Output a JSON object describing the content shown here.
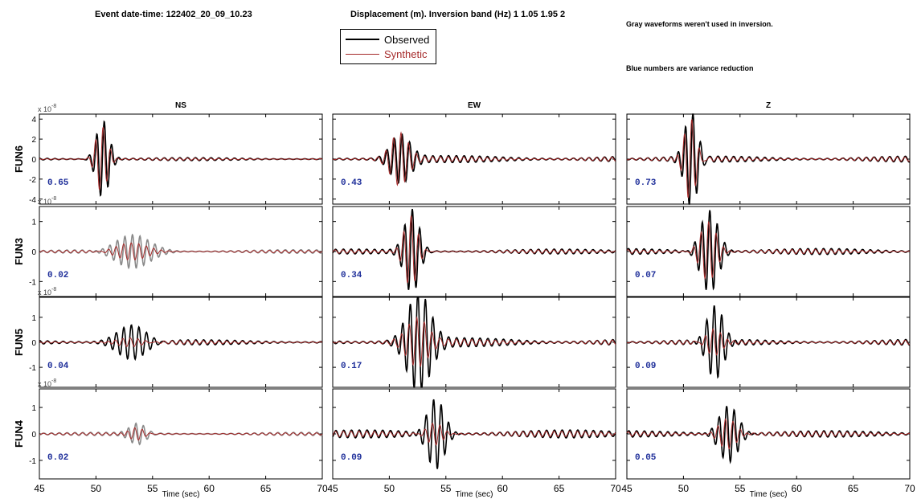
{
  "header": {
    "event": "Event date-time: 122402_20_09_10.23",
    "displacement": "Displacement (m).  Inversion band (Hz)  1 1.05 1.95 2",
    "gray_note": "Gray waveforms weren't used in inversion.",
    "blue_note": "Blue numbers are variance reduction"
  },
  "legend": {
    "observed": "Observed",
    "synthetic": "Synthetic"
  },
  "colors": {
    "observed": "#000000",
    "synthetic": "#a52a2a",
    "unused": "#8a8a8a",
    "variance": "#1f2f9a"
  },
  "chart_data": {
    "type": "line",
    "columns": [
      "NS",
      "EW",
      "Z"
    ],
    "stations": [
      "FUN6",
      "FUN3",
      "FUN5",
      "FUN4"
    ],
    "xlabel": "Time (sec)",
    "xlim": [
      45,
      70
    ],
    "xticks": [
      45,
      50,
      55,
      60,
      65,
      70
    ],
    "x_tick_labels": [
      [
        "45",
        "50",
        "55",
        "60",
        "65",
        "70"
      ],
      [
        "45",
        "50",
        "55",
        "60",
        "65",
        "70"
      ],
      [
        "45",
        "50",
        "55",
        "60",
        "65",
        "70"
      ]
    ],
    "scale_label": "x 10",
    "scale_exponent": "-8",
    "rows": [
      {
        "station": "FUN6",
        "ylim": [
          -4.5,
          4.5
        ],
        "yticks": [
          -4,
          -2,
          0,
          2,
          4
        ],
        "variance_reduction": [
          "0.65",
          "0.43",
          "0.73"
        ],
        "used": [
          true,
          true,
          true
        ],
        "peaks": [
          [
            3.9,
            2.3,
            4.8
          ],
          [
            3.3,
            2.5,
            4.2
          ]
        ],
        "centers": [
          50.6,
          51.0,
          50.7
        ],
        "widths": [
          0.8,
          1.2,
          0.8
        ],
        "noise": [
          0.15,
          0.35,
          0.3
        ]
      },
      {
        "station": "FUN3",
        "ylim": [
          -1.5,
          1.5
        ],
        "yticks": [
          -1,
          0,
          1
        ],
        "variance_reduction": [
          "0.02",
          "0.34",
          "0.07"
        ],
        "used": [
          false,
          true,
          true
        ],
        "peaks": [
          [
            0.6,
            1.4,
            1.4
          ],
          [
            0.3,
            1.2,
            1.0
          ]
        ],
        "centers": [
          53.2,
          52.0,
          52.3
        ],
        "widths": [
          2.2,
          0.9,
          1.1
        ],
        "noise": [
          0.06,
          0.08,
          0.1
        ]
      },
      {
        "station": "FUN5",
        "ylim": [
          -1.8,
          1.8
        ],
        "yticks": [
          -1,
          0,
          1
        ],
        "variance_reduction": [
          "0.04",
          "0.17",
          "0.09"
        ],
        "used": [
          true,
          true,
          true
        ],
        "peaks": [
          [
            0.7,
            1.9,
            1.6
          ],
          [
            0.2,
            0.9,
            0.6
          ]
        ],
        "centers": [
          53.2,
          52.6,
          52.8
        ],
        "widths": [
          1.8,
          1.4,
          1.1
        ],
        "noise": [
          0.1,
          0.18,
          0.12
        ]
      },
      {
        "station": "FUN4",
        "ylim": [
          -1.7,
          1.7
        ],
        "yticks": [
          -1,
          0,
          1
        ],
        "variance_reduction": [
          "0.02",
          "0.09",
          "0.05"
        ],
        "used": [
          false,
          true,
          true
        ],
        "peaks": [
          [
            0.4,
            1.4,
            1.1
          ],
          [
            0.25,
            0.45,
            0.6
          ]
        ],
        "centers": [
          53.7,
          54.1,
          54.0
        ],
        "widths": [
          1.0,
          1.1,
          1.2
        ],
        "noise": [
          0.06,
          0.15,
          0.12
        ]
      }
    ]
  }
}
